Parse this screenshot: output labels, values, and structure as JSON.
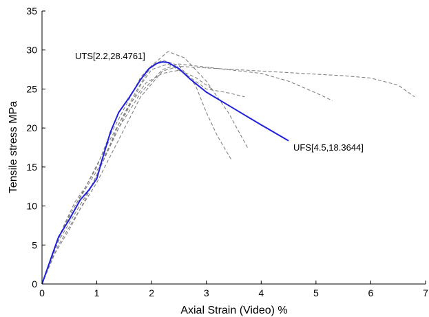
{
  "chart_data": {
    "type": "line",
    "xlabel": "Axial Strain (Video) %",
    "ylabel": "Tensile stress MPa",
    "xlim": [
      0,
      7
    ],
    "ylim": [
      0,
      35
    ],
    "xticks": [
      "0",
      "1",
      "2",
      "3",
      "4",
      "5",
      "6",
      "7"
    ],
    "yticks": [
      "0",
      "5",
      "10",
      "15",
      "20",
      "25",
      "30",
      "35"
    ],
    "grid": false,
    "legend": "none",
    "colors": {
      "main": "#1f1fdc",
      "trials": "#808080"
    },
    "series": [
      {
        "style": "solid",
        "x": [
          0,
          0.15,
          0.3,
          0.5,
          0.7,
          0.85,
          1.0,
          1.1,
          1.25,
          1.4,
          1.6,
          1.8,
          1.95,
          2.1,
          2.2,
          2.3,
          2.5,
          2.7,
          3.0,
          3.5,
          4.0,
          4.5
        ],
        "y": [
          0,
          3.0,
          6.0,
          8.3,
          10.8,
          12.0,
          13.5,
          16.0,
          19.5,
          22.0,
          24.0,
          26.2,
          27.6,
          28.3,
          28.48,
          28.4,
          27.6,
          26.3,
          24.6,
          22.5,
          20.4,
          18.36
        ]
      },
      {
        "style": "dashed",
        "x": [
          0,
          0.2,
          0.4,
          0.6,
          0.8,
          1.0,
          1.2,
          1.5,
          1.8,
          2.0,
          2.2,
          2.5,
          2.8,
          3.0,
          3.2,
          3.45
        ],
        "y": [
          0,
          4.0,
          7.5,
          10.5,
          12.5,
          15.0,
          18.5,
          22.5,
          26.5,
          28.0,
          28.7,
          28.0,
          25.5,
          22.0,
          19.0,
          16.0
        ]
      },
      {
        "style": "dashed",
        "x": [
          0,
          0.2,
          0.5,
          0.8,
          1.1,
          1.4,
          1.7,
          2.0,
          2.3,
          2.6,
          3.0,
          3.4,
          3.75
        ],
        "y": [
          0,
          3.5,
          7.0,
          11.0,
          15.5,
          20.5,
          24.5,
          28.0,
          29.8,
          29.0,
          26.0,
          22.0,
          17.5
        ]
      },
      {
        "style": "dashed",
        "x": [
          0,
          0.3,
          0.6,
          0.9,
          1.2,
          1.5,
          1.8,
          2.0,
          2.3,
          2.6,
          3.0,
          3.4,
          3.7
        ],
        "y": [
          0,
          5.5,
          9.0,
          12.5,
          17.0,
          21.5,
          25.5,
          27.5,
          28.2,
          27.0,
          25.0,
          24.5,
          24.0
        ]
      },
      {
        "style": "dashed",
        "x": [
          0,
          0.3,
          0.6,
          1.0,
          1.4,
          1.8,
          2.2,
          2.5,
          3.0,
          3.5,
          4.0,
          4.5,
          5.0,
          5.3
        ],
        "y": [
          0,
          6.0,
          10.0,
          14.5,
          20.0,
          24.5,
          27.5,
          28.2,
          27.8,
          27.4,
          27.0,
          26.0,
          24.5,
          23.5
        ]
      },
      {
        "style": "dashed",
        "x": [
          0,
          0.3,
          0.6,
          1.0,
          1.4,
          1.8,
          2.2,
          2.5,
          3.0,
          3.5,
          4.0,
          4.5,
          5.0,
          5.5,
          6.0,
          6.5,
          6.8
        ],
        "y": [
          0,
          5.0,
          8.5,
          13.0,
          18.5,
          24.0,
          27.3,
          27.9,
          27.7,
          27.5,
          27.3,
          27.1,
          26.9,
          26.7,
          26.4,
          25.5,
          24.0
        ]
      },
      {
        "style": "dashed",
        "x": [
          0,
          0.4,
          0.8,
          1.2,
          1.6,
          1.9,
          2.2,
          2.5,
          2.8,
          3.1
        ],
        "y": [
          0,
          7.5,
          12.5,
          18.0,
          23.0,
          25.8,
          27.0,
          27.4,
          26.5,
          25.0
        ]
      }
    ],
    "annotations": [
      {
        "text": "UTS[2.2,28.4761]",
        "x": 2.2,
        "y": 28.4761
      },
      {
        "text": "UFS[4.5,18.3644]",
        "x": 4.5,
        "y": 18.3644
      }
    ]
  }
}
